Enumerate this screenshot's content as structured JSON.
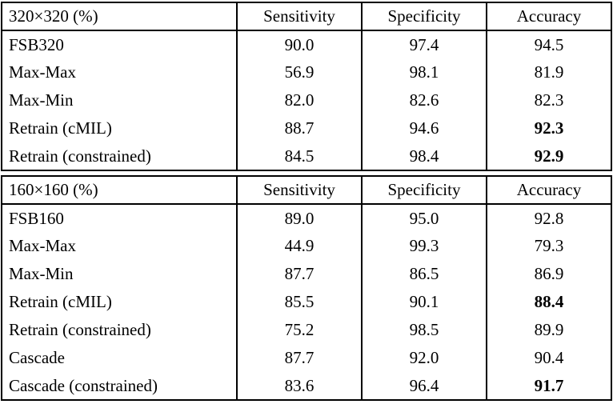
{
  "tables": [
    {
      "title": "320×320 (%)",
      "columns": [
        "Sensitivity",
        "Specificity",
        "Accuracy"
      ],
      "rows": [
        {
          "method": "FSB320",
          "sensitivity": "90.0",
          "specificity": "97.4",
          "accuracy": "94.5",
          "accuracy_bold": false
        },
        {
          "method": "Max-Max",
          "sensitivity": "56.9",
          "specificity": "98.1",
          "accuracy": "81.9",
          "accuracy_bold": false
        },
        {
          "method": "Max-Min",
          "sensitivity": "82.0",
          "specificity": "82.6",
          "accuracy": "82.3",
          "accuracy_bold": false
        },
        {
          "method": "Retrain (cMIL)",
          "sensitivity": "88.7",
          "specificity": "94.6",
          "accuracy": "92.3",
          "accuracy_bold": true
        },
        {
          "method": "Retrain (constrained)",
          "sensitivity": "84.5",
          "specificity": "98.4",
          "accuracy": "92.9",
          "accuracy_bold": true
        }
      ]
    },
    {
      "title": "160×160 (%)",
      "columns": [
        "Sensitivity",
        "Specificity",
        "Accuracy"
      ],
      "rows": [
        {
          "method": "FSB160",
          "sensitivity": "89.0",
          "specificity": "95.0",
          "accuracy": "92.8",
          "accuracy_bold": false
        },
        {
          "method": "Max-Max",
          "sensitivity": "44.9",
          "specificity": "99.3",
          "accuracy": "79.3",
          "accuracy_bold": false
        },
        {
          "method": "Max-Min",
          "sensitivity": "87.7",
          "specificity": "86.5",
          "accuracy": "86.9",
          "accuracy_bold": false
        },
        {
          "method": "Retrain (cMIL)",
          "sensitivity": "85.5",
          "specificity": "90.1",
          "accuracy": "88.4",
          "accuracy_bold": true
        },
        {
          "method": "Retrain (constrained)",
          "sensitivity": "75.2",
          "specificity": "98.5",
          "accuracy": "89.9",
          "accuracy_bold": false
        },
        {
          "method": "Cascade",
          "sensitivity": "87.7",
          "specificity": "92.0",
          "accuracy": "90.4",
          "accuracy_bold": false
        },
        {
          "method": "Cascade (constrained)",
          "sensitivity": "83.6",
          "specificity": "96.4",
          "accuracy": "91.7",
          "accuracy_bold": true
        }
      ]
    }
  ]
}
